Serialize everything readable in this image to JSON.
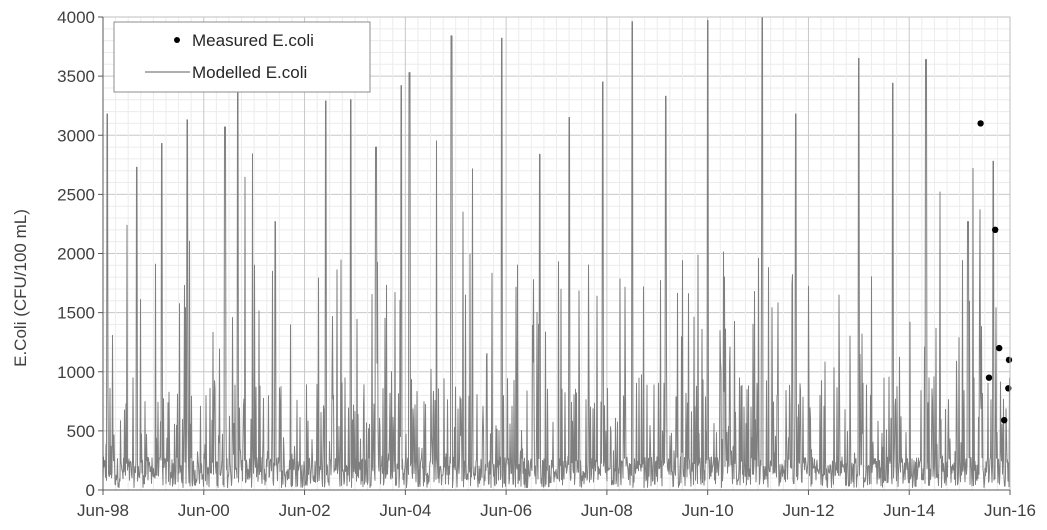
{
  "chart_data": {
    "type": "line",
    "ylabel": "E.Coli (CFU/100 mL)",
    "xlabel": "",
    "ylim": [
      0,
      4000
    ],
    "xlim": [
      "1998-06-01",
      "2016-06-01"
    ],
    "y_ticks": [
      0,
      500,
      1000,
      1500,
      2000,
      2500,
      3000,
      3500,
      4000
    ],
    "x_ticks": [
      "Jun-98",
      "Jun-00",
      "Jun-02",
      "Jun-04",
      "Jun-06",
      "Jun-08",
      "Jun-10",
      "Jun-12",
      "Jun-14",
      "Jun-16"
    ],
    "grid": true,
    "legend": {
      "position": "top-left",
      "entries": [
        "Measured E.coli",
        "Modelled E.coli"
      ]
    },
    "series": [
      {
        "name": "Modelled E.coli",
        "type": "line",
        "color": "#7f7f7f",
        "note_peaks": [
          [
            "1998-07-01",
            3180
          ],
          [
            "1999-02-01",
            2730
          ],
          [
            "1999-08-01",
            2930
          ],
          [
            "2000-02-01",
            3130
          ],
          [
            "2000-11-01",
            3070
          ],
          [
            "2001-02-01",
            3380
          ],
          [
            "2001-11-01",
            2270
          ],
          [
            "2002-11-01",
            3290
          ],
          [
            "2003-05-01",
            3300
          ],
          [
            "2003-11-01",
            2900
          ],
          [
            "2004-05-01",
            3420
          ],
          [
            "2004-07-01",
            3530
          ],
          [
            "2005-05-01",
            3840
          ],
          [
            "2006-05-01",
            3820
          ],
          [
            "2007-02-01",
            2840
          ],
          [
            "2007-09-01",
            3150
          ],
          [
            "2008-05-01",
            3450
          ],
          [
            "2008-12-01",
            3960
          ],
          [
            "2009-08-01",
            3330
          ],
          [
            "2010-06-01",
            3970
          ],
          [
            "2011-07-01",
            4000
          ],
          [
            "2012-03-01",
            3180
          ],
          [
            "2013-06-01",
            3650
          ],
          [
            "2014-02-01",
            3440
          ],
          [
            "2014-10-01",
            3640
          ],
          [
            "2015-08-01",
            2270
          ],
          [
            "2016-02-01",
            2780
          ]
        ]
      },
      {
        "name": "Measured E.coli",
        "type": "scatter",
        "color": "#000000",
        "x": [
          "2015-11-01",
          "2016-01-01",
          "2016-02-15",
          "2016-03-15",
          "2016-04-20",
          "2016-05-20",
          "2016-05-25"
        ],
        "y": [
          3100,
          950,
          2200,
          1200,
          590,
          860,
          1100
        ]
      }
    ]
  }
}
